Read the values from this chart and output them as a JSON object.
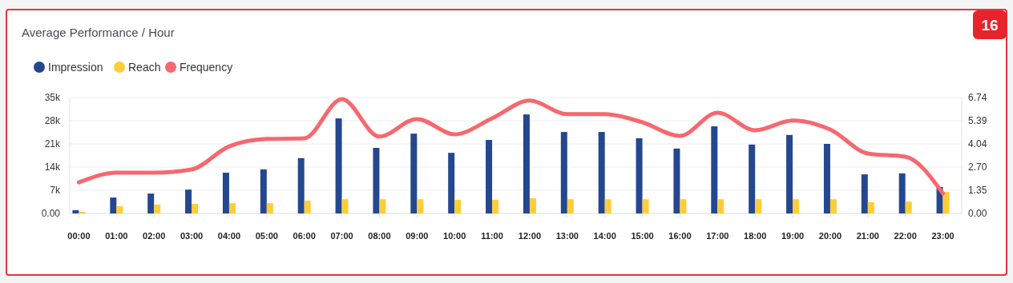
{
  "chart_data": {
    "type": "bar",
    "title": "Average Performance / Hour",
    "annotations": [
      "16"
    ],
    "categories": [
      "00:00",
      "01:00",
      "02:00",
      "03:00",
      "04:00",
      "05:00",
      "06:00",
      "07:00",
      "08:00",
      "09:00",
      "10:00",
      "11:00",
      "12:00",
      "13:00",
      "14:00",
      "15:00",
      "16:00",
      "17:00",
      "18:00",
      "19:00",
      "20:00",
      "21:00",
      "22:00",
      "23:00"
    ],
    "series": [
      {
        "name": "Impression",
        "color": "#24478f",
        "values": [
          1000,
          4800,
          6000,
          7200,
          12300,
          13300,
          16700,
          28700,
          19800,
          24100,
          18300,
          22200,
          29900,
          24600,
          24600,
          22700,
          19600,
          26300,
          20800,
          23700,
          21000,
          11800,
          12100,
          8000
        ]
      },
      {
        "name": "Reach",
        "color": "#ffcd3a",
        "values": [
          500,
          2200,
          2700,
          2900,
          3100,
          3100,
          3900,
          4300,
          4300,
          4300,
          4100,
          4100,
          4600,
          4300,
          4300,
          4300,
          4300,
          4300,
          4300,
          4300,
          4300,
          3400,
          3600,
          6500
        ]
      },
      {
        "name": "Frequency",
        "type": "line",
        "axis": "y2",
        "color": "#f6686f",
        "values": [
          1.81,
          2.37,
          2.37,
          2.56,
          3.9,
          4.33,
          4.37,
          6.65,
          4.47,
          5.49,
          4.6,
          5.53,
          6.56,
          5.77,
          5.77,
          5.3,
          4.51,
          5.86,
          4.84,
          5.4,
          4.88,
          3.49,
          3.3,
          1.16
        ]
      }
    ],
    "ylim": [
      0,
      35000
    ],
    "yticks": [
      {
        "value": 0,
        "label": "0.00"
      },
      {
        "value": 7000,
        "label": "7k"
      },
      {
        "value": 14000,
        "label": "14k"
      },
      {
        "value": 21000,
        "label": "21k"
      },
      {
        "value": 28000,
        "label": "28k"
      },
      {
        "value": 35000,
        "label": "35k"
      }
    ],
    "y2lim": [
      0,
      6.74
    ],
    "y2ticks": [
      {
        "value": 0,
        "label": "0.00"
      },
      1.35,
      {
        "value": 2.7,
        "label": "2.70"
      },
      4.04,
      5.39,
      6.74
    ],
    "grid": "y",
    "legend": "top left"
  }
}
